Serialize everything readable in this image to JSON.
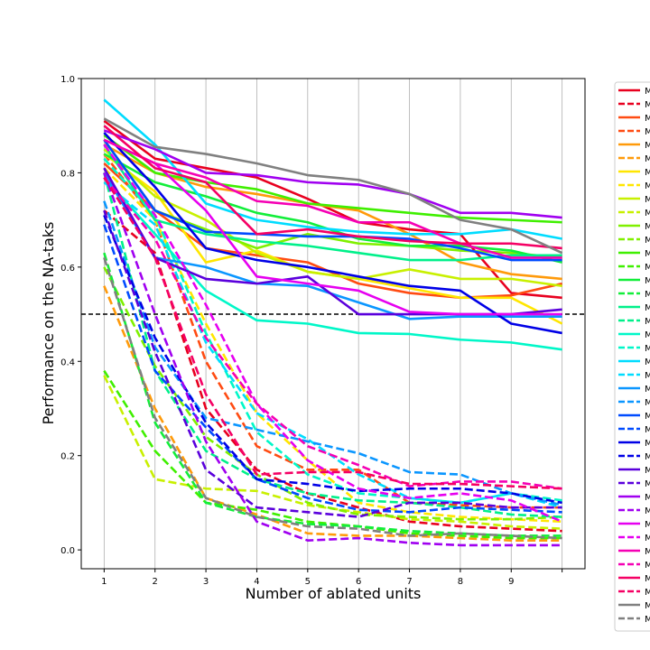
{
  "chart_data": {
    "type": "line",
    "title": "",
    "xlabel": "Number of ablated units",
    "ylabel": "Performance on the NA-taks",
    "x": [
      1,
      2,
      3,
      4,
      5,
      6,
      7,
      8,
      9,
      10
    ],
    "x_tick_labels": [
      "1",
      "2",
      "3",
      "4",
      "5",
      "6",
      "7",
      "8",
      "9",
      ""
    ],
    "xlim": [
      0.55,
      10.45
    ],
    "ylim": [
      -0.04,
      1.0
    ],
    "y_ticks": [
      0.0,
      0.2,
      0.4,
      0.6,
      0.8,
      1.0
    ],
    "y_tick_labels": [
      "0.0",
      "0.2",
      "0.4",
      "0.6",
      "0.8",
      "1.0"
    ],
    "grid": "vertical",
    "reference_line": {
      "y": 0.5,
      "style": "dashed",
      "color": "#000000"
    },
    "legend": {
      "placement": "outside-right",
      "entry_label": "M"
    },
    "series": [
      {
        "color": "#e8001f",
        "style": "solid",
        "values": [
          0.91,
          0.83,
          0.81,
          0.79,
          0.745,
          0.695,
          0.68,
          0.67,
          0.545,
          0.535
        ]
      },
      {
        "color": "#e8001f",
        "style": "dashed",
        "values": [
          0.72,
          0.63,
          0.3,
          0.17,
          0.12,
          0.09,
          0.06,
          0.05,
          0.045,
          0.04
        ]
      },
      {
        "color": "#ff4b12",
        "style": "solid",
        "values": [
          0.82,
          0.72,
          0.64,
          0.625,
          0.61,
          0.565,
          0.545,
          0.535,
          0.54,
          0.565
        ]
      },
      {
        "color": "#ff4b12",
        "style": "dashed",
        "values": [
          0.84,
          0.7,
          0.4,
          0.22,
          0.17,
          0.17,
          0.1,
          0.095,
          0.09,
          0.09
        ]
      },
      {
        "color": "#ff9a0a",
        "style": "solid",
        "values": [
          0.86,
          0.8,
          0.77,
          0.755,
          0.735,
          0.72,
          0.67,
          0.61,
          0.585,
          0.575
        ]
      },
      {
        "color": "#ff9a0a",
        "style": "dashed",
        "values": [
          0.56,
          0.3,
          0.11,
          0.075,
          0.035,
          0.03,
          0.03,
          0.025,
          0.02,
          0.02
        ]
      },
      {
        "color": "#ffe600",
        "style": "solid",
        "values": [
          0.84,
          0.76,
          0.61,
          0.635,
          0.59,
          0.575,
          0.555,
          0.535,
          0.535,
          0.48
        ]
      },
      {
        "color": "#ffe600",
        "style": "dashed",
        "values": [
          0.81,
          0.7,
          0.48,
          0.29,
          0.19,
          0.1,
          0.08,
          0.07,
          0.065,
          0.06
        ]
      },
      {
        "color": "#c8f000",
        "style": "solid",
        "values": [
          0.85,
          0.75,
          0.7,
          0.63,
          0.59,
          0.575,
          0.595,
          0.575,
          0.575,
          0.56
        ]
      },
      {
        "color": "#c8f000",
        "style": "dashed",
        "values": [
          0.37,
          0.15,
          0.13,
          0.125,
          0.095,
          0.08,
          0.065,
          0.06,
          0.05,
          0.045
        ]
      },
      {
        "color": "#80f000",
        "style": "solid",
        "values": [
          0.87,
          0.72,
          0.68,
          0.64,
          0.67,
          0.65,
          0.645,
          0.635,
          0.63,
          0.62
        ]
      },
      {
        "color": "#80f000",
        "style": "dashed",
        "values": [
          0.6,
          0.39,
          0.24,
          0.16,
          0.1,
          0.075,
          0.07,
          0.065,
          0.065,
          0.07
        ]
      },
      {
        "color": "#3fef00",
        "style": "solid",
        "values": [
          0.88,
          0.8,
          0.78,
          0.765,
          0.735,
          0.725,
          0.715,
          0.705,
          0.7,
          0.695
        ]
      },
      {
        "color": "#3fef00",
        "style": "dashed",
        "values": [
          0.38,
          0.21,
          0.1,
          0.085,
          0.06,
          0.05,
          0.035,
          0.03,
          0.025,
          0.025
        ]
      },
      {
        "color": "#12ee3a",
        "style": "solid",
        "values": [
          0.84,
          0.78,
          0.75,
          0.715,
          0.695,
          0.66,
          0.645,
          0.645,
          0.635,
          0.61
        ]
      },
      {
        "color": "#12ee3a",
        "style": "dashed",
        "values": [
          0.63,
          0.27,
          0.1,
          0.07,
          0.055,
          0.05,
          0.04,
          0.035,
          0.03,
          0.03
        ]
      },
      {
        "color": "#00f08a",
        "style": "solid",
        "values": [
          0.86,
          0.7,
          0.67,
          0.655,
          0.645,
          0.63,
          0.615,
          0.615,
          0.625,
          0.625
        ]
      },
      {
        "color": "#00f08a",
        "style": "dashed",
        "values": [
          0.8,
          0.38,
          0.21,
          0.15,
          0.12,
          0.105,
          0.1,
          0.09,
          0.075,
          0.07
        ]
      },
      {
        "color": "#00f7c8",
        "style": "solid",
        "values": [
          0.79,
          0.67,
          0.55,
          0.487,
          0.48,
          0.46,
          0.458,
          0.446,
          0.44,
          0.425
        ]
      },
      {
        "color": "#00f7c8",
        "style": "dashed",
        "values": [
          0.83,
          0.71,
          0.46,
          0.25,
          0.16,
          0.12,
          0.11,
          0.1,
          0.12,
          0.105
        ]
      },
      {
        "color": "#00dcff",
        "style": "solid",
        "values": [
          0.955,
          0.86,
          0.735,
          0.7,
          0.685,
          0.675,
          0.67,
          0.67,
          0.68,
          0.66
        ]
      },
      {
        "color": "#00dcff",
        "style": "dashed",
        "values": [
          0.78,
          0.69,
          0.44,
          0.29,
          0.235,
          0.16,
          0.11,
          0.1,
          0.12,
          0.09
        ]
      },
      {
        "color": "#0a96ff",
        "style": "solid",
        "values": [
          0.8,
          0.62,
          0.6,
          0.565,
          0.56,
          0.525,
          0.49,
          0.495,
          0.495,
          0.495
        ]
      },
      {
        "color": "#0a96ff",
        "style": "dashed",
        "values": [
          0.74,
          0.43,
          0.28,
          0.255,
          0.23,
          0.205,
          0.165,
          0.16,
          0.12,
          0.095
        ]
      },
      {
        "color": "#004bff",
        "style": "solid",
        "values": [
          0.87,
          0.72,
          0.675,
          0.67,
          0.665,
          0.665,
          0.66,
          0.64,
          0.615,
          0.615
        ]
      },
      {
        "color": "#004bff",
        "style": "dashed",
        "values": [
          0.69,
          0.38,
          0.26,
          0.15,
          0.11,
          0.085,
          0.08,
          0.09,
          0.085,
          0.08
        ]
      },
      {
        "color": "#0000e6",
        "style": "solid",
        "values": [
          0.885,
          0.77,
          0.64,
          0.615,
          0.6,
          0.58,
          0.56,
          0.55,
          0.48,
          0.46
        ]
      },
      {
        "color": "#0000e6",
        "style": "dashed",
        "values": [
          0.71,
          0.45,
          0.27,
          0.15,
          0.14,
          0.125,
          0.13,
          0.13,
          0.12,
          0.1
        ]
      },
      {
        "color": "#5a00dc",
        "style": "solid",
        "values": [
          0.81,
          0.62,
          0.575,
          0.565,
          0.58,
          0.5,
          0.5,
          0.5,
          0.5,
          0.51
        ]
      },
      {
        "color": "#5a00dc",
        "style": "dashed",
        "values": [
          0.72,
          0.42,
          0.17,
          0.09,
          0.08,
          0.07,
          0.1,
          0.1,
          0.09,
          0.09
        ]
      },
      {
        "color": "#a000f0",
        "style": "solid",
        "values": [
          0.89,
          0.85,
          0.8,
          0.795,
          0.78,
          0.775,
          0.755,
          0.715,
          0.715,
          0.705
        ]
      },
      {
        "color": "#a000f0",
        "style": "dashed",
        "values": [
          0.8,
          0.5,
          0.23,
          0.06,
          0.02,
          0.025,
          0.015,
          0.01,
          0.01,
          0.01
        ]
      },
      {
        "color": "#e600f0",
        "style": "solid",
        "values": [
          0.87,
          0.82,
          0.72,
          0.58,
          0.565,
          0.55,
          0.505,
          0.5,
          0.5,
          0.5
        ]
      },
      {
        "color": "#e600f0",
        "style": "dashed",
        "values": [
          0.86,
          0.71,
          0.52,
          0.31,
          0.19,
          0.13,
          0.11,
          0.12,
          0.105,
          0.06
        ]
      },
      {
        "color": "#f500b4",
        "style": "solid",
        "values": [
          0.87,
          0.82,
          0.79,
          0.74,
          0.73,
          0.695,
          0.695,
          0.65,
          0.62,
          0.62
        ]
      },
      {
        "color": "#f500b4",
        "style": "dashed",
        "values": [
          0.79,
          0.66,
          0.45,
          0.31,
          0.22,
          0.18,
          0.135,
          0.145,
          0.145,
          0.13
        ]
      },
      {
        "color": "#f50064",
        "style": "solid",
        "values": [
          0.9,
          0.81,
          0.78,
          0.67,
          0.68,
          0.665,
          0.655,
          0.65,
          0.65,
          0.64
        ]
      },
      {
        "color": "#f50064",
        "style": "dashed",
        "values": [
          0.79,
          0.62,
          0.33,
          0.16,
          0.165,
          0.165,
          0.14,
          0.14,
          0.135,
          0.13
        ]
      },
      {
        "color": "#808080",
        "style": "solid",
        "values": [
          0.915,
          0.855,
          0.84,
          0.82,
          0.795,
          0.785,
          0.755,
          0.7,
          0.68,
          0.63
        ]
      },
      {
        "color": "#808080",
        "style": "dashed",
        "values": [
          0.62,
          0.28,
          0.11,
          0.07,
          0.05,
          0.045,
          0.03,
          0.035,
          0.03,
          0.025
        ]
      }
    ]
  }
}
